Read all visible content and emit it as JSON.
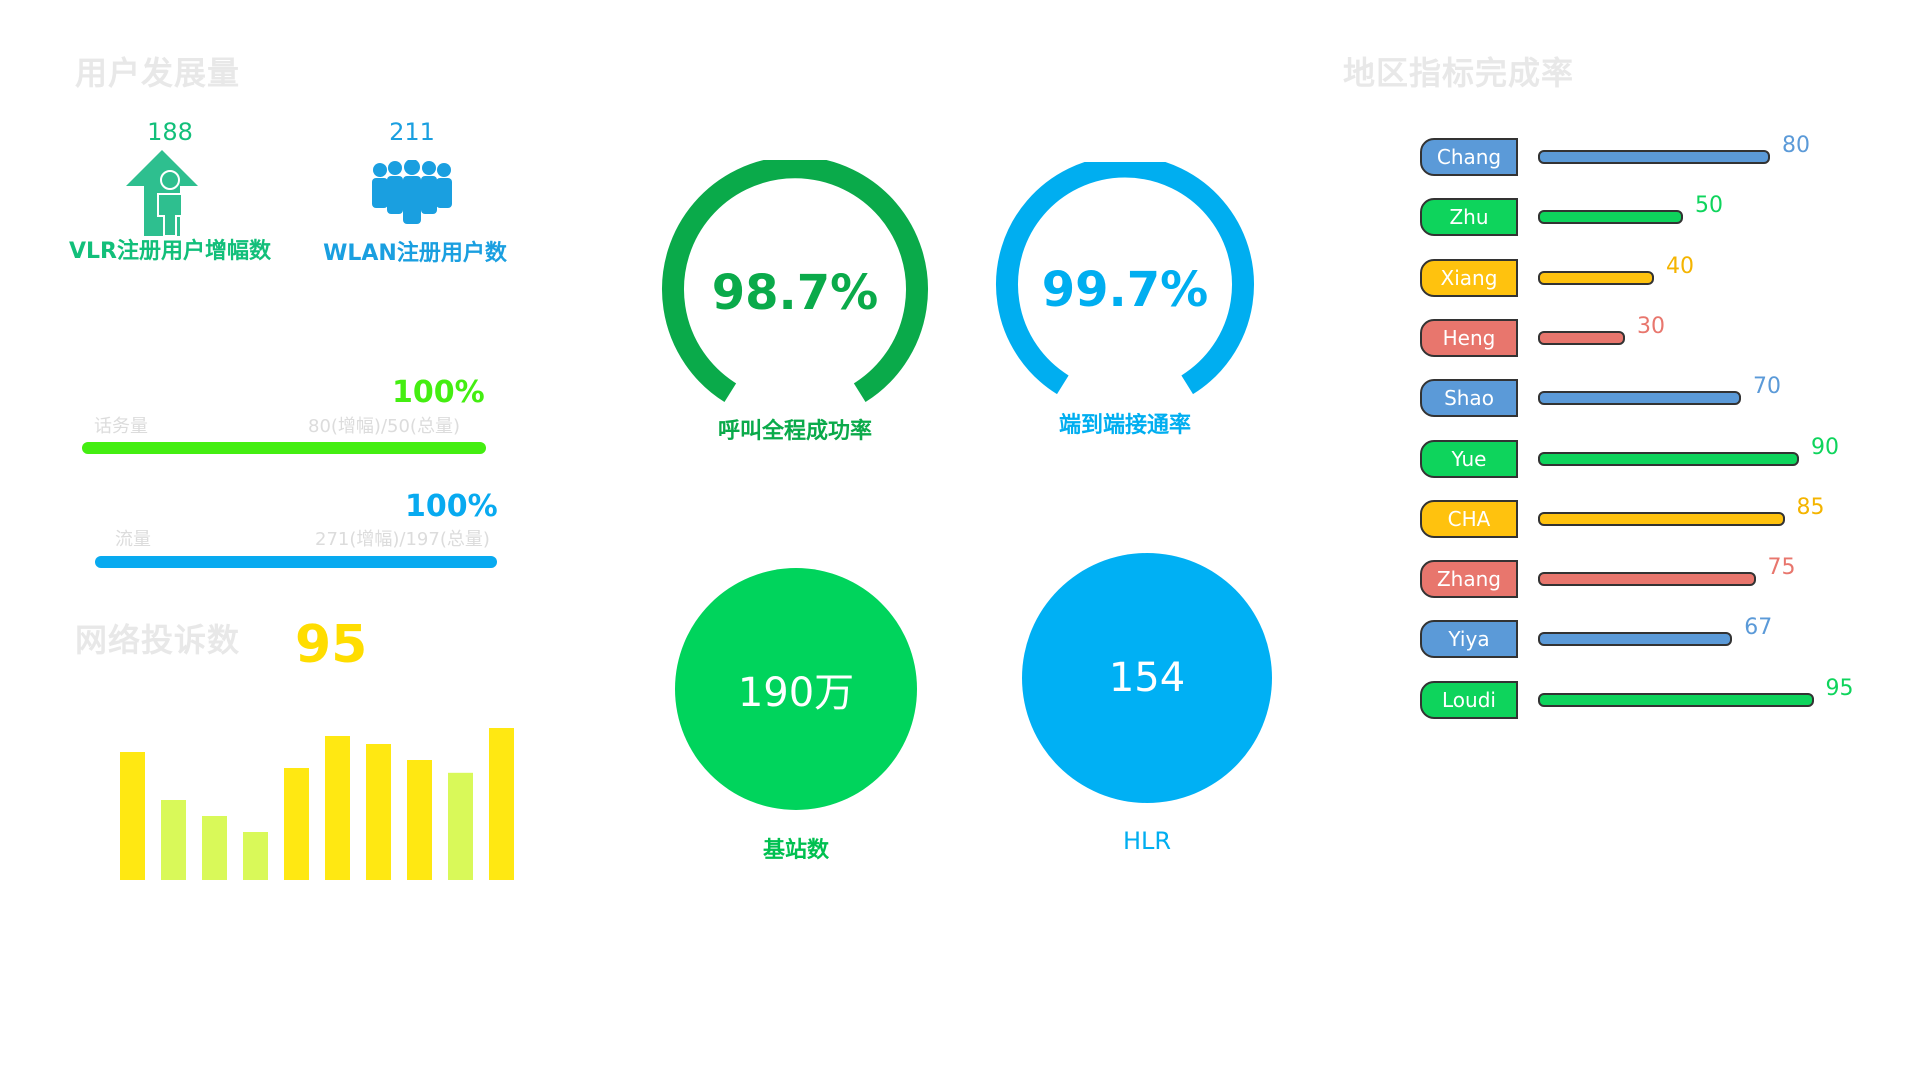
{
  "user_dev": {
    "title": "用户发展量",
    "vlr": {
      "value": "188",
      "label": "VLR注册用户增幅数",
      "color": "#12bf7a"
    },
    "wlan": {
      "value": "211",
      "label": "WLAN注册用户数",
      "color": "#1a9fe0"
    }
  },
  "progress": [
    {
      "pct": "100%",
      "name": "话务量",
      "detail": "80(增幅)/50(总量)",
      "color": "#44ee11",
      "fraction": 1.0
    },
    {
      "pct": "100%",
      "name": "流量",
      "detail": "271(增幅)/197(总量)",
      "color": "#08aaf0",
      "fraction": 1.0
    }
  ],
  "complaints": {
    "title": "网络投诉数",
    "value": "95"
  },
  "gauges": [
    {
      "value": "98.7%",
      "label": "呼叫全程成功率",
      "color": "#0aaa4a",
      "fraction": 0.987
    },
    {
      "value": "99.7%",
      "label": "端到端接通率",
      "color": "#00aef0",
      "fraction": 0.997
    }
  ],
  "circles": [
    {
      "value": "190万",
      "label": "基站数",
      "color": "#00d45c"
    },
    {
      "value": "154",
      "label": "HLR",
      "color": "#00b0f4"
    }
  ],
  "region": {
    "title": "地区指标完成率"
  },
  "chart_data": [
    {
      "type": "bar",
      "orientation": "vertical",
      "categories": [
        "",
        "",
        "",
        "",
        "",
        "",
        "",
        "",
        "",
        ""
      ],
      "values": [
        80,
        50,
        40,
        30,
        70,
        90,
        85,
        75,
        67,
        95
      ],
      "colors": [
        "#ffe812",
        "#d9f959",
        "#d9f959",
        "#d9f959",
        "#ffe812",
        "#ffe812",
        "#ffe812",
        "#ffe812",
        "#d9f959",
        "#ffe812"
      ],
      "ylim": [
        0,
        100
      ],
      "title": "",
      "xlabel": "",
      "ylabel": "",
      "grid": false
    },
    {
      "type": "bar",
      "orientation": "horizontal",
      "categories": [
        "Chang",
        "Zhu",
        "Xiang",
        "Heng",
        "Shao",
        "Yue",
        "CHA",
        "Zhang",
        "Yiya",
        "Loudi"
      ],
      "values": [
        80,
        50,
        40,
        30,
        70,
        90,
        85,
        75,
        67,
        95
      ],
      "colors": [
        "#5b9ad8",
        "#0ed45c",
        "#ffc20e",
        "#e8766d",
        "#5b9ad8",
        "#0ed45c",
        "#ffc20e",
        "#e8766d",
        "#5b9ad8",
        "#0ed45c"
      ],
      "value_colors": [
        "#5b9ad8",
        "#0ed45c",
        "#f4b400",
        "#e8766d",
        "#5b9ad8",
        "#0ed45c",
        "#f4b400",
        "#e8766d",
        "#5b9ad8",
        "#0ed45c"
      ],
      "xlim": [
        0,
        100
      ],
      "title": "",
      "grid": false
    }
  ]
}
